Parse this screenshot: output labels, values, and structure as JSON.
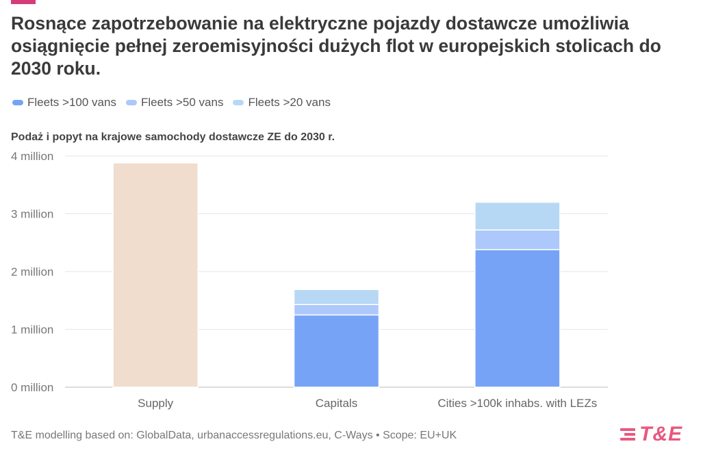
{
  "header": {
    "title": "Rosnące zapotrzebowanie na elektryczne pojazdy dostawcze umożliwia osiągnięcie pełnej zeroemisyjności dużych flot w europejskich stolicach do 2030 roku."
  },
  "legend": [
    {
      "label": "Fleets >100 vans",
      "color": "#76a3f6"
    },
    {
      "label": "Fleets >50 vans",
      "color": "#adc8fa"
    },
    {
      "label": "Fleets >20 vans",
      "color": "#b7d8f5"
    }
  ],
  "subtitle": "Podaż i popyt na krajowe samochody dostawcze ZE do 2030 r.",
  "chart_data": {
    "type": "bar",
    "stacked": true,
    "categories": [
      "Supply",
      "Capitals",
      "Cities >100k inhabs. with LEZs"
    ],
    "series": [
      {
        "name": "Supply",
        "values": [
          3.88,
          0,
          0
        ],
        "color": "#f0ddcd"
      },
      {
        "name": "Fleets >100 vans",
        "values": [
          0,
          1.25,
          2.38
        ],
        "color": "#76a3f6"
      },
      {
        "name": "Fleets >50 vans",
        "values": [
          0,
          0.18,
          0.34
        ],
        "color": "#adc8fa"
      },
      {
        "name": "Fleets >20 vans",
        "values": [
          0,
          0.26,
          0.48
        ],
        "color": "#b7d8f5"
      }
    ],
    "ylim": [
      0,
      4
    ],
    "yticks": [
      0,
      1,
      2,
      3,
      4
    ],
    "ytick_labels": [
      "0 million",
      "1 million",
      "2 million",
      "3 million",
      "4 million"
    ],
    "unit": "million",
    "grid": true
  },
  "footer": {
    "source": "T&E modelling based on: GlobalData, urbanaccessregulations.eu, C-Ways • Scope: EU+UK",
    "logo_text": "T&E"
  },
  "colors": {
    "brand": "#e8587f",
    "accent_bar": "#d63c7a"
  }
}
